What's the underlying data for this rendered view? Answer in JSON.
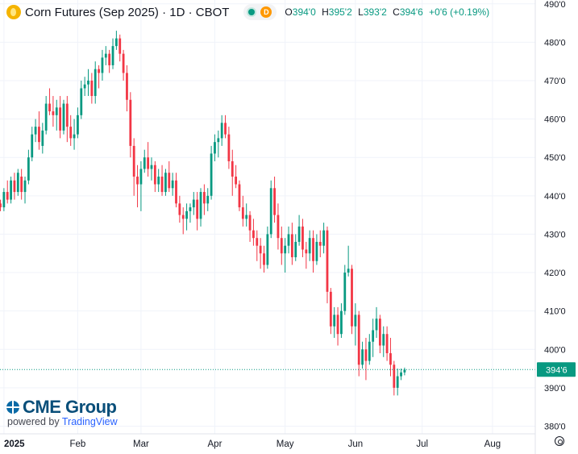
{
  "legend": {
    "title": "Corn Futures (Sep 2025) · 1D · CBOT",
    "badge": "D",
    "open_label": "O",
    "open": "394'0",
    "high_label": "H",
    "high": "395'2",
    "low_label": "L",
    "low": "393'2",
    "close_label": "C",
    "close": "394'6",
    "change": "+0'6 (+0.19%)"
  },
  "branding": {
    "logo": "CME Group",
    "powered_by": "powered by",
    "tradingview": "TradingView"
  },
  "colors": {
    "up": "#089981",
    "down": "#f23645",
    "price_line": "#089981",
    "grid": "#f0f3fa",
    "axis_text": "#131722"
  },
  "icons": [
    "corn-symbol-icon",
    "market-open-dot-icon",
    "delayed-data-badge",
    "cme-globe-icon",
    "chart-settings-icon"
  ],
  "chart_data": {
    "type": "candlestick",
    "title": "Corn Futures (Sep 2025) · 1D · CBOT",
    "ylim": [
      378,
      491
    ],
    "y_ticks": [
      "490'0",
      "480'0",
      "470'0",
      "460'0",
      "450'0",
      "440'0",
      "430'0",
      "420'0",
      "410'0",
      "400'0",
      "390'0",
      "380'0"
    ],
    "y_tick_values": [
      490,
      480,
      470,
      460,
      450,
      440,
      430,
      420,
      410,
      400,
      390,
      380
    ],
    "x_ticks": [
      {
        "label": "2025",
        "bar": 1,
        "bold": true
      },
      {
        "label": "Feb",
        "bar": 22
      },
      {
        "label": "Mar",
        "bar": 40
      },
      {
        "label": "Apr",
        "bar": 61
      },
      {
        "label": "May",
        "bar": 81
      },
      {
        "label": "Jun",
        "bar": 101
      },
      {
        "label": "Jul",
        "bar": 120
      },
      {
        "label": "Aug",
        "bar": 140
      }
    ],
    "last_price": 394.75,
    "last_price_label": "394'6",
    "grid": true,
    "candles": [
      [
        438,
        439,
        436,
        437
      ],
      [
        437,
        442,
        436,
        441
      ],
      [
        441,
        444,
        438,
        439
      ],
      [
        439,
        445,
        438,
        444
      ],
      [
        444,
        446,
        439,
        441
      ],
      [
        441,
        447,
        440,
        446
      ],
      [
        445,
        447,
        439,
        441
      ],
      [
        441,
        445,
        438,
        444
      ],
      [
        444,
        452,
        443,
        450
      ],
      [
        450,
        458,
        449,
        456
      ],
      [
        456,
        460,
        454,
        458
      ],
      [
        458,
        462,
        452,
        454
      ],
      [
        453,
        459,
        451,
        457
      ],
      [
        457,
        466,
        456,
        464
      ],
      [
        464,
        468,
        461,
        462
      ],
      [
        462,
        466,
        458,
        461
      ],
      [
        461,
        465,
        457,
        463
      ],
      [
        463,
        466,
        455,
        457
      ],
      [
        457,
        465,
        456,
        464
      ],
      [
        464,
        466,
        454,
        458
      ],
      [
        458,
        461,
        453,
        455
      ],
      [
        455,
        460,
        452,
        456
      ],
      [
        456,
        463,
        455,
        461
      ],
      [
        461,
        470,
        460,
        468
      ],
      [
        468,
        471,
        466,
        469
      ],
      [
        469,
        473,
        466,
        470
      ],
      [
        470,
        472,
        464,
        466
      ],
      [
        466,
        475,
        464,
        473
      ],
      [
        473,
        474,
        468,
        472
      ],
      [
        472,
        478,
        470,
        476
      ],
      [
        476,
        479,
        474,
        477
      ],
      [
        477,
        478,
        472,
        474
      ],
      [
        474,
        481,
        473,
        479
      ],
      [
        479,
        483,
        478,
        481
      ],
      [
        481,
        482,
        475,
        477
      ],
      [
        477,
        478,
        470,
        472
      ],
      [
        472,
        474,
        462,
        465
      ],
      [
        465,
        467,
        450,
        453
      ],
      [
        453,
        455,
        440,
        445
      ],
      [
        445,
        448,
        437,
        443
      ],
      [
        443,
        449,
        436,
        447
      ],
      [
        447,
        452,
        446,
        450
      ],
      [
        450,
        454,
        445,
        447
      ],
      [
        447,
        450,
        444,
        448
      ],
      [
        448,
        449,
        441,
        443
      ],
      [
        443,
        447,
        441,
        445
      ],
      [
        445,
        448,
        440,
        441
      ],
      [
        441,
        447,
        440,
        446
      ],
      [
        446,
        449,
        441,
        442
      ],
      [
        442,
        446,
        440,
        444
      ],
      [
        444,
        446,
        437,
        438
      ],
      [
        438,
        440,
        433,
        435
      ],
      [
        435,
        437,
        430,
        434
      ],
      [
        434,
        438,
        431,
        436
      ],
      [
        436,
        438,
        433,
        437
      ],
      [
        437,
        441,
        435,
        439
      ],
      [
        439,
        441,
        431,
        434
      ],
      [
        434,
        442,
        432,
        441
      ],
      [
        441,
        443,
        435,
        438
      ],
      [
        438,
        442,
        436,
        440
      ],
      [
        440,
        453,
        439,
        451
      ],
      [
        451,
        456,
        449,
        454
      ],
      [
        454,
        457,
        450,
        455
      ],
      [
        455,
        461,
        453,
        459
      ],
      [
        459,
        461,
        455,
        456
      ],
      [
        456,
        458,
        447,
        449
      ],
      [
        449,
        452,
        440,
        445
      ],
      [
        445,
        448,
        442,
        443
      ],
      [
        443,
        444,
        436,
        437
      ],
      [
        437,
        440,
        432,
        434
      ],
      [
        434,
        438,
        432,
        435
      ],
      [
        435,
        436,
        428,
        431
      ],
      [
        431,
        434,
        427,
        429
      ],
      [
        429,
        431,
        423,
        427
      ],
      [
        427,
        429,
        421,
        425
      ],
      [
        425,
        427,
        420,
        422
      ],
      [
        422,
        432,
        421,
        430
      ],
      [
        430,
        444,
        429,
        442
      ],
      [
        442,
        445,
        433,
        435
      ],
      [
        435,
        438,
        426,
        429
      ],
      [
        429,
        432,
        422,
        425
      ],
      [
        425,
        429,
        420,
        427
      ],
      [
        427,
        432,
        425,
        430
      ],
      [
        430,
        433,
        422,
        424
      ],
      [
        424,
        430,
        423,
        428
      ],
      [
        428,
        435,
        427,
        432
      ],
      [
        432,
        434,
        424,
        426
      ],
      [
        426,
        428,
        421,
        425
      ],
      [
        425,
        431,
        423,
        429
      ],
      [
        429,
        431,
        420,
        423
      ],
      [
        423,
        430,
        422,
        428
      ],
      [
        428,
        431,
        424,
        427
      ],
      [
        427,
        433,
        425,
        431
      ],
      [
        431,
        432,
        412,
        415
      ],
      [
        415,
        416,
        404,
        406
      ],
      [
        406,
        411,
        403,
        409
      ],
      [
        409,
        411,
        401,
        404
      ],
      [
        404,
        412,
        403,
        410
      ],
      [
        410,
        422,
        409,
        420
      ],
      [
        420,
        427,
        419,
        421
      ],
      [
        421,
        422,
        404,
        406
      ],
      [
        406,
        412,
        401,
        409
      ],
      [
        409,
        410,
        393,
        396
      ],
      [
        396,
        402,
        395,
        400
      ],
      [
        400,
        403,
        392,
        397
      ],
      [
        397,
        404,
        396,
        402
      ],
      [
        402,
        408,
        398,
        405
      ],
      [
        405,
        411,
        403,
        408
      ],
      [
        408,
        409,
        399,
        401
      ],
      [
        401,
        406,
        398,
        404
      ],
      [
        404,
        406,
        397,
        399
      ],
      [
        399,
        403,
        393,
        396
      ],
      [
        396,
        397,
        388,
        390
      ],
      [
        390,
        395,
        388,
        393
      ],
      [
        393,
        395,
        392,
        394
      ],
      [
        394,
        395.25,
        393.25,
        394.75
      ]
    ]
  }
}
